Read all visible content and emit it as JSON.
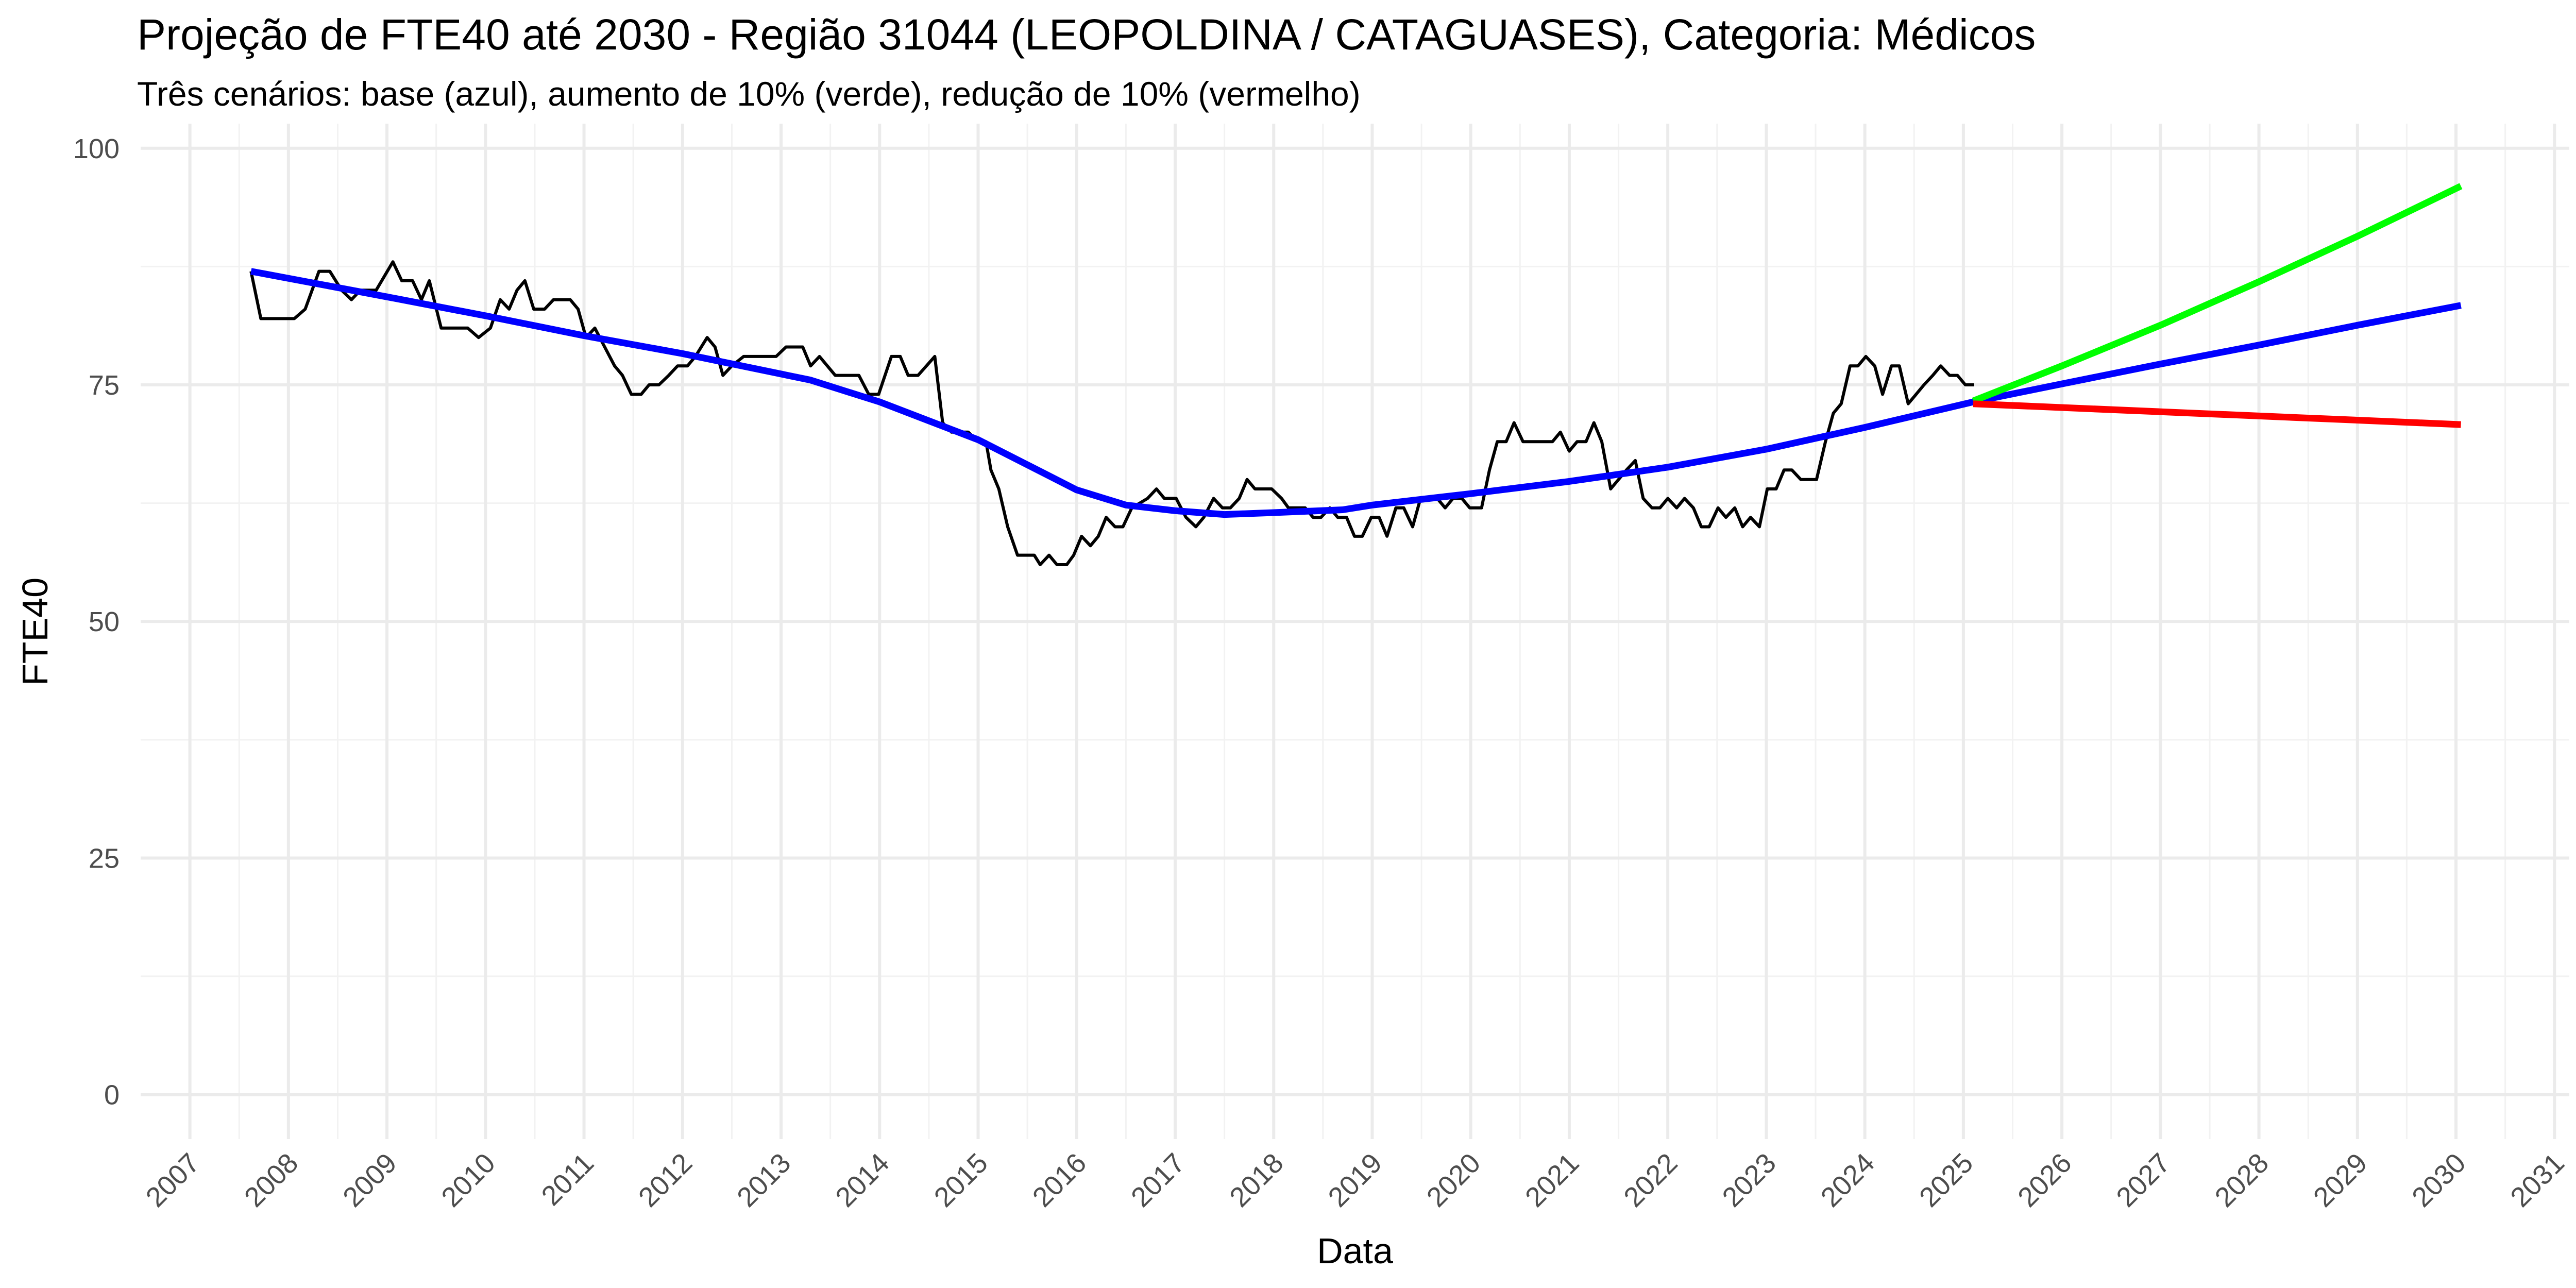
{
  "chart_data": {
    "type": "line",
    "title": "Projeção de FTE40 até 2030 - Região 31044 (LEOPOLDINA / CATAGUASES), Categoria: Médicos",
    "subtitle": "Três cenários: base (azul), aumento de 10% (verde), redução de 10% (vermelho)",
    "x_label": "Data",
    "y_label": "FTE40",
    "xlim": [
      2006.5,
      2031.15
    ],
    "xticks": [
      2007,
      2008,
      2009,
      2010,
      2011,
      2012,
      2013,
      2014,
      2015,
      2016,
      2017,
      2018,
      2019,
      2020,
      2021,
      2022,
      2023,
      2024,
      2025,
      2026,
      2027,
      2028,
      2029,
      2030,
      2031
    ],
    "ylim": [
      -4.7,
      102.6
    ],
    "yticks": [
      0,
      25,
      50,
      75,
      100
    ],
    "grid": true,
    "series": [
      {
        "color": "#000000",
        "x": [
          2007.62,
          2007.72,
          2008.06,
          2008.17,
          2008.31,
          2008.42,
          2008.54,
          2008.64,
          2008.73,
          2008.89,
          2009.06,
          2009.15,
          2009.26,
          2009.35,
          2009.43,
          2009.55,
          2009.82,
          2009.93,
          2010.05,
          2010.15,
          2010.24,
          2010.32,
          2010.4,
          2010.49,
          2010.6,
          2010.69,
          2010.86,
          2010.94,
          2011.02,
          2011.11,
          2011.21,
          2011.31,
          2011.39,
          2011.48,
          2011.58,
          2011.66,
          2011.76,
          2011.86,
          2011.95,
          2012.05,
          2012.13,
          2012.25,
          2012.33,
          2012.41,
          2012.5,
          2012.62,
          2012.95,
          2013.05,
          2013.22,
          2013.3,
          2013.39,
          2013.55,
          2013.79,
          2013.89,
          2013.99,
          2014.12,
          2014.21,
          2014.29,
          2014.39,
          2014.56,
          2014.64,
          2014.73,
          2014.9,
          2015.0,
          2015.08,
          2015.13,
          2015.21,
          2015.3,
          2015.4,
          2015.57,
          2015.63,
          2015.72,
          2015.8,
          2015.9,
          2015.97,
          2016.05,
          2016.14,
          2016.22,
          2016.3,
          2016.39,
          2016.47,
          2016.56,
          2016.72,
          2016.81,
          2016.89,
          2017.01,
          2017.11,
          2017.21,
          2017.29,
          2017.39,
          2017.48,
          2017.56,
          2017.65,
          2017.73,
          2017.81,
          2017.98,
          2018.08,
          2018.15,
          2018.32,
          2018.4,
          2018.48,
          2018.57,
          2018.65,
          2018.74,
          2018.82,
          2018.9,
          2018.99,
          2019.07,
          2019.15,
          2019.24,
          2019.32,
          2019.41,
          2019.49,
          2019.66,
          2019.74,
          2019.82,
          2019.91,
          2019.99,
          2020.11,
          2020.19,
          2020.27,
          2020.36,
          2020.44,
          2020.53,
          2020.83,
          2020.91,
          2021.0,
          2021.08,
          2021.17,
          2021.25,
          2021.33,
          2021.42,
          2021.5,
          2021.58,
          2021.67,
          2021.75,
          2021.84,
          2021.92,
          2022.0,
          2022.09,
          2022.17,
          2022.26,
          2022.34,
          2022.42,
          2022.51,
          2022.59,
          2022.68,
          2022.76,
          2022.84,
          2022.93,
          2023.01,
          2023.1,
          2023.18,
          2023.26,
          2023.35,
          2023.51,
          2023.6,
          2023.68,
          2023.76,
          2023.85,
          2023.93,
          2024.01,
          2024.1,
          2024.18,
          2024.27,
          2024.35,
          2024.44,
          2024.52,
          2024.6,
          2024.69,
          2024.77,
          2024.86,
          2024.94,
          2025.02,
          2025.11
        ],
        "values": [
          87,
          82,
          82,
          83,
          87,
          87,
          85,
          84,
          85,
          85,
          88,
          86,
          86,
          84,
          86,
          81,
          81,
          80,
          81,
          84,
          83,
          85,
          86,
          83,
          83,
          84,
          84,
          83,
          80,
          81,
          79,
          77,
          76,
          74,
          74,
          75,
          75,
          76,
          77,
          77,
          78,
          80,
          79,
          76,
          77,
          78,
          78,
          79,
          79,
          77,
          78,
          76,
          76,
          74,
          74,
          78,
          78,
          76,
          76,
          78,
          71,
          70,
          70,
          69,
          69,
          66,
          64,
          60,
          57,
          57,
          56,
          57,
          56,
          56,
          57,
          59,
          58,
          59,
          61,
          60,
          60,
          62,
          63,
          64,
          63,
          63,
          61,
          60,
          61,
          63,
          62,
          62,
          63,
          65,
          64,
          64,
          63,
          62,
          62,
          61,
          61,
          62,
          61,
          61,
          59,
          59,
          61,
          61,
          59,
          62,
          62,
          60,
          63,
          63,
          62,
          63,
          63,
          62,
          62,
          66,
          69,
          69,
          71,
          69,
          69,
          70,
          68,
          69,
          69,
          71,
          69,
          64,
          65,
          66,
          67,
          63,
          62,
          62,
          63,
          62,
          63,
          62,
          60,
          60,
          62,
          61,
          62,
          60,
          61,
          60,
          64,
          64,
          66,
          66,
          65,
          65,
          69,
          72,
          73,
          77,
          77,
          78,
          77,
          74,
          77,
          77,
          73,
          74,
          75,
          76,
          77,
          76,
          76,
          75,
          75
        ]
      },
      {
        "color": "#0000ff",
        "x": [
          2007.62,
          2009,
          2010,
          2011,
          2012,
          2013.3,
          2014,
          2015,
          2016,
          2016.5,
          2017,
          2017.5,
          2018,
          2018.7,
          2019,
          2020,
          2021,
          2022,
          2023,
          2024,
          2025.1,
          2026,
          2027,
          2028,
          2029,
          2030.05
        ],
        "values": [
          87,
          84.3,
          82.3,
          80.2,
          78.3,
          75.5,
          73.2,
          69.2,
          63.9,
          62.3,
          61.7,
          61.3,
          61.5,
          61.8,
          62.3,
          63.5,
          64.8,
          66.3,
          68.2,
          70.5,
          73.2,
          75.1,
          77.2,
          79.2,
          81.3,
          83.4
        ]
      },
      {
        "color": "#00ff00",
        "x": [
          2025.1,
          2026,
          2027,
          2028,
          2029,
          2030.05
        ],
        "values": [
          73.3,
          77.0,
          81.3,
          85.9,
          90.7,
          96
        ]
      },
      {
        "color": "#ff0000",
        "x": [
          2025.1,
          2030.05
        ],
        "values": [
          73.0,
          70.8
        ]
      }
    ]
  }
}
